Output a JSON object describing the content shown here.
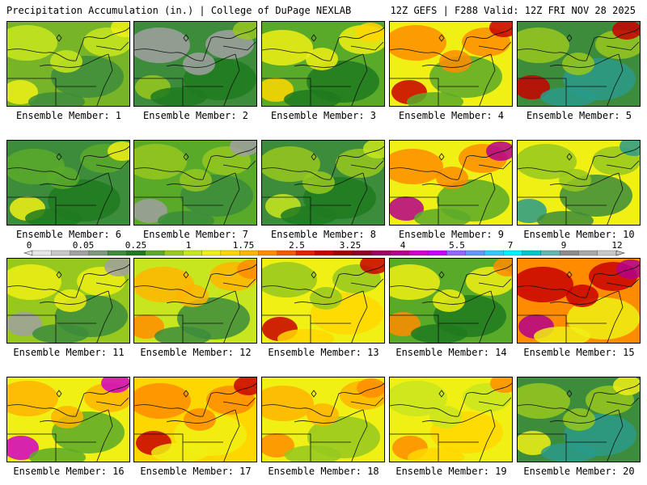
{
  "header": {
    "title": "Precipitation Accumulation (in.) | College of DuPage NEXLAB",
    "run_info": "12Z GEFS | F288 Valid: 12Z FRI NOV 28 2025"
  },
  "legend": {
    "labels": [
      "0",
      "0.05",
      "0.25",
      "1",
      "1.75",
      "2.5",
      "3.25",
      "4",
      "5.5",
      "7",
      "9",
      "12"
    ],
    "colors": [
      "#e6e6e6",
      "#c8c8c8",
      "#a0a0a0",
      "#7a9a7a",
      "#3c8c3c",
      "#1f7a1f",
      "#5aaa2a",
      "#96c81e",
      "#c8e61e",
      "#f0f014",
      "#ffd700",
      "#ffb400",
      "#ff8c00",
      "#f05a00",
      "#e61e00",
      "#c80000",
      "#a00000",
      "#8c0028",
      "#9b0064",
      "#b4008c",
      "#d200c8",
      "#c800ff",
      "#9664ff",
      "#6496ff",
      "#32c8ff",
      "#00f0ff",
      "#00c8c8",
      "#64b4b4",
      "#8c8c8c",
      "#a8a8a8",
      "#c8c8c8"
    ]
  },
  "panels": [
    {
      "label": "Ensemble Member: 1",
      "base": "#78b428",
      "a": "#c8e61e",
      "b": "#3c8c3c",
      "c": "#f0f014"
    },
    {
      "label": "Ensemble Member: 2",
      "base": "#3c8c3c",
      "a": "#a0a0a0",
      "b": "#1f7a1f",
      "c": "#96c81e"
    },
    {
      "label": "Ensemble Member: 3",
      "base": "#5aaa2a",
      "a": "#f0f014",
      "b": "#1f7a1f",
      "c": "#ffd700"
    },
    {
      "label": "Ensemble Member: 4",
      "base": "#f0f014",
      "a": "#ff8c00",
      "b": "#5aaa2a",
      "c": "#c80000"
    },
    {
      "label": "Ensemble Member: 5",
      "base": "#3c8c3c",
      "a": "#96c81e",
      "b": "#2a9a8a",
      "c": "#c80000"
    },
    {
      "label": "Ensemble Member: 6",
      "base": "#3c8c3c",
      "a": "#5aaa2a",
      "b": "#1f7a1f",
      "c": "#f0f014"
    },
    {
      "label": "Ensemble Member: 7",
      "base": "#5aaa2a",
      "a": "#96c81e",
      "b": "#3c8c3c",
      "c": "#a0a0a0"
    },
    {
      "label": "Ensemble Member: 8",
      "base": "#3c8c3c",
      "a": "#96c81e",
      "b": "#1f7a1f",
      "c": "#c8e61e"
    },
    {
      "label": "Ensemble Member: 9",
      "base": "#f0f014",
      "a": "#ff8c00",
      "b": "#5aaa2a",
      "c": "#b4008c"
    },
    {
      "label": "Ensemble Member: 10",
      "base": "#f0f014",
      "a": "#96c81e",
      "b": "#3c8c3c",
      "c": "#2a9a8a"
    },
    {
      "label": "Ensemble Member: 11",
      "base": "#96c81e",
      "a": "#f0f014",
      "b": "#3c8c3c",
      "c": "#a0a0a0"
    },
    {
      "label": "Ensemble Member: 12",
      "base": "#c8e61e",
      "a": "#ffb400",
      "b": "#3c8c3c",
      "c": "#ff8c00"
    },
    {
      "label": "Ensemble Member: 13",
      "base": "#f0f014",
      "a": "#96c81e",
      "b": "#ffd700",
      "c": "#c80000"
    },
    {
      "label": "Ensemble Member: 14",
      "base": "#5aaa2a",
      "a": "#f0f014",
      "b": "#1f7a1f",
      "c": "#ff8c00"
    },
    {
      "label": "Ensemble Member: 15",
      "base": "#ff8c00",
      "a": "#c80000",
      "b": "#f0f014",
      "c": "#b4008c"
    },
    {
      "label": "Ensemble Member: 16",
      "base": "#f0f014",
      "a": "#ffb400",
      "b": "#5aaa2a",
      "c": "#d200c8"
    },
    {
      "label": "Ensemble Member: 17",
      "base": "#ffd700",
      "a": "#ff8c00",
      "b": "#f0f014",
      "c": "#c80000"
    },
    {
      "label": "Ensemble Member: 18",
      "base": "#f0f014",
      "a": "#ffb400",
      "b": "#96c81e",
      "c": "#ff8c00"
    },
    {
      "label": "Ensemble Member: 19",
      "base": "#f0f014",
      "a": "#c8e61e",
      "b": "#ffd700",
      "c": "#ff8c00"
    },
    {
      "label": "Ensemble Member: 20",
      "base": "#3c8c3c",
      "a": "#96c81e",
      "b": "#2a9a8a",
      "c": "#f0f014"
    }
  ]
}
